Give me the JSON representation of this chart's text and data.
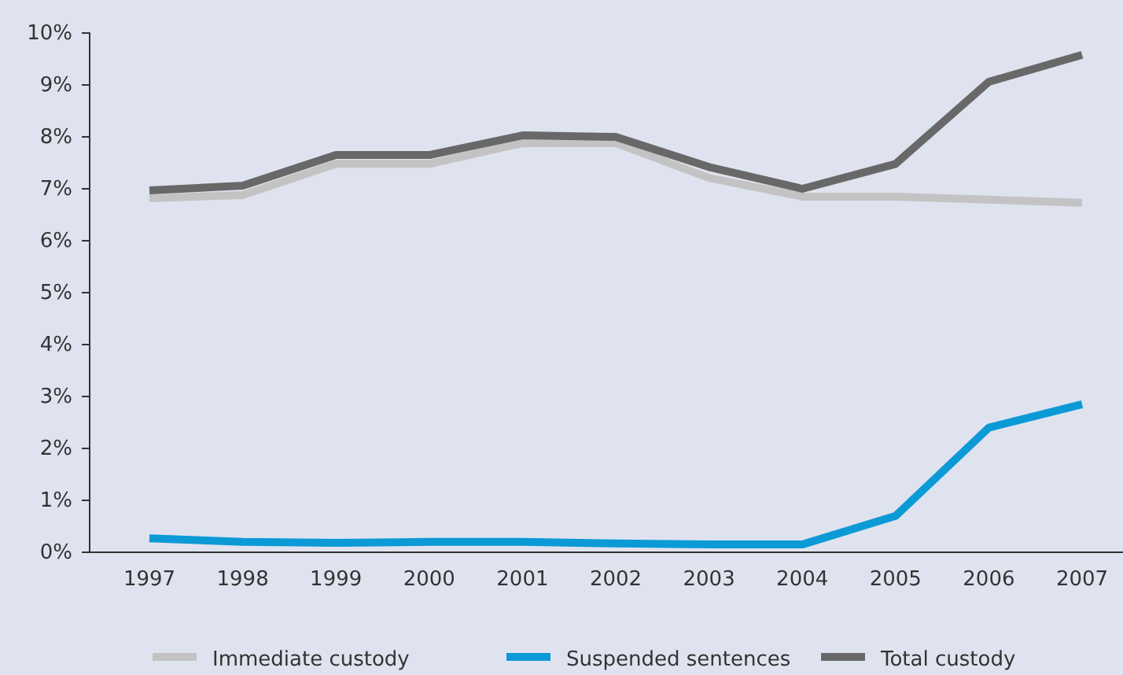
{
  "chart_data": {
    "type": "line",
    "categories": [
      "1997",
      "1998",
      "1999",
      "2000",
      "2001",
      "2002",
      "2003",
      "2004",
      "2005",
      "2006",
      "2007"
    ],
    "series": [
      {
        "name": "Immediate custody",
        "color": "#c3c3c3",
        "values": [
          6.82,
          6.88,
          7.48,
          7.48,
          7.88,
          7.88,
          7.21,
          6.85,
          6.85,
          6.79,
          6.73
        ]
      },
      {
        "name": "Suspended sentences",
        "color": "#0b9ad6",
        "values": [
          0.27,
          0.2,
          0.18,
          0.2,
          0.2,
          0.17,
          0.15,
          0.15,
          0.7,
          2.4,
          2.85
        ]
      },
      {
        "name": "Total custody",
        "color": "#686868",
        "values": [
          6.97,
          7.06,
          7.65,
          7.65,
          8.03,
          8.0,
          7.42,
          7.0,
          7.48,
          9.06,
          9.58
        ]
      }
    ],
    "ylim": [
      0,
      10
    ],
    "yticks": [
      {
        "value": 0,
        "label": "0%"
      },
      {
        "value": 1,
        "label": "1%"
      },
      {
        "value": 2,
        "label": "2%"
      },
      {
        "value": 3,
        "label": "3%"
      },
      {
        "value": 4,
        "label": "4%"
      },
      {
        "value": 5,
        "label": "5%"
      },
      {
        "value": 6,
        "label": "6%"
      },
      {
        "value": 7,
        "label": "7%"
      },
      {
        "value": 8,
        "label": "8%"
      },
      {
        "value": 9,
        "label": "9%"
      },
      {
        "value": 10,
        "label": "10%"
      }
    ],
    "grid": false,
    "legend": "bottom",
    "marker": "none",
    "line_style": "solid"
  }
}
